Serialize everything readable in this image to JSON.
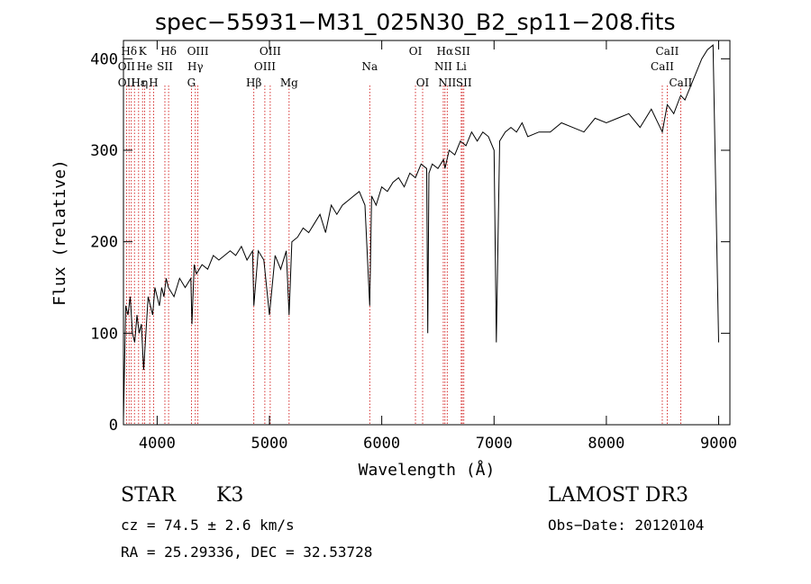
{
  "chart_data": {
    "type": "line",
    "title": "spec−55931−M31_025N30_B2_sp11−208.fits",
    "xlabel": "Wavelength (Å)",
    "ylabel": "Flux (relative)",
    "xlim": [
      3700,
      9100
    ],
    "ylim": [
      0,
      420
    ],
    "x_ticks": [
      4000,
      5000,
      6000,
      7000,
      8000,
      9000
    ],
    "y_ticks": [
      0,
      100,
      200,
      300,
      400
    ],
    "series": [
      {
        "name": "spectrum",
        "x": [
          3700,
          3720,
          3740,
          3760,
          3780,
          3800,
          3820,
          3840,
          3860,
          3880,
          3900,
          3920,
          3940,
          3960,
          3980,
          4000,
          4020,
          4040,
          4060,
          4080,
          4100,
          4150,
          4200,
          4250,
          4300,
          4310,
          4330,
          4350,
          4400,
          4450,
          4500,
          4550,
          4600,
          4650,
          4700,
          4750,
          4800,
          4850,
          4861,
          4900,
          4950,
          5000,
          5050,
          5100,
          5150,
          5175,
          5200,
          5250,
          5300,
          5350,
          5400,
          5450,
          5500,
          5550,
          5600,
          5650,
          5700,
          5750,
          5800,
          5850,
          5893,
          5910,
          5950,
          6000,
          6050,
          6100,
          6150,
          6200,
          6250,
          6300,
          6350,
          6400,
          6410,
          6420,
          6450,
          6500,
          6550,
          6563,
          6600,
          6650,
          6700,
          6750,
          6800,
          6850,
          6900,
          6950,
          7000,
          7020,
          7050,
          7100,
          7150,
          7200,
          7250,
          7300,
          7400,
          7500,
          7600,
          7700,
          7800,
          7900,
          8000,
          8100,
          8200,
          8300,
          8400,
          8498,
          8542,
          8600,
          8662,
          8700,
          8750,
          8800,
          8850,
          8900,
          8950,
          9000
        ],
        "values": [
          5,
          130,
          120,
          140,
          100,
          90,
          120,
          100,
          110,
          60,
          100,
          140,
          130,
          120,
          150,
          140,
          130,
          150,
          140,
          160,
          150,
          140,
          160,
          150,
          160,
          110,
          175,
          165,
          175,
          170,
          185,
          180,
          185,
          190,
          185,
          195,
          180,
          190,
          130,
          190,
          180,
          120,
          185,
          170,
          190,
          120,
          200,
          205,
          215,
          210,
          220,
          230,
          210,
          240,
          230,
          240,
          245,
          250,
          255,
          240,
          130,
          250,
          240,
          260,
          255,
          265,
          270,
          260,
          275,
          270,
          285,
          280,
          100,
          275,
          285,
          280,
          290,
          280,
          300,
          295,
          310,
          305,
          320,
          310,
          320,
          315,
          300,
          90,
          310,
          320,
          325,
          320,
          330,
          315,
          320,
          320,
          330,
          325,
          320,
          335,
          330,
          335,
          340,
          325,
          345,
          320,
          350,
          340,
          360,
          355,
          370,
          385,
          400,
          410,
          415,
          90
        ]
      }
    ],
    "lines": [
      {
        "name": "Hδ",
        "wavelength": 3750,
        "row": 0
      },
      {
        "name": "K",
        "wavelength": 3870,
        "row": 0
      },
      {
        "name": "Hδ",
        "wavelength": 4102,
        "row": 0
      },
      {
        "name": "OIII",
        "wavelength": 4363,
        "row": 0
      },
      {
        "name": "OIII",
        "wavelength": 5007,
        "row": 0
      },
      {
        "name": "OI",
        "wavelength": 6300,
        "row": 0
      },
      {
        "name": "Hα",
        "wavelength": 6563,
        "row": 0
      },
      {
        "name": "SII",
        "wavelength": 6717,
        "row": 0
      },
      {
        "name": "CaII",
        "wavelength": 8542,
        "row": 0
      },
      {
        "name": "OII",
        "wavelength": 3727,
        "row": 1
      },
      {
        "name": "He",
        "wavelength": 3889,
        "row": 1
      },
      {
        "name": "SII",
        "wavelength": 4069,
        "row": 1
      },
      {
        "name": "Hγ",
        "wavelength": 4340,
        "row": 1
      },
      {
        "name": "OIII",
        "wavelength": 4959,
        "row": 1
      },
      {
        "name": "Na",
        "wavelength": 5893,
        "row": 1
      },
      {
        "name": "NII",
        "wavelength": 6548,
        "row": 1
      },
      {
        "name": "Li",
        "wavelength": 6708,
        "row": 1
      },
      {
        "name": "CaII",
        "wavelength": 8498,
        "row": 1
      },
      {
        "name": "OII",
        "wavelength": 3727,
        "row": 2
      },
      {
        "name": "Hε",
        "wavelength": 3835,
        "row": 2
      },
      {
        "name": "η",
        "wavelength": 3889,
        "row": 2
      },
      {
        "name": "H",
        "wavelength": 3968,
        "row": 2
      },
      {
        "name": "G",
        "wavelength": 4305,
        "row": 2
      },
      {
        "name": "Hβ",
        "wavelength": 4861,
        "row": 2
      },
      {
        "name": "Mg",
        "wavelength": 5175,
        "row": 2
      },
      {
        "name": "OI",
        "wavelength": 6364,
        "row": 2
      },
      {
        "name": "NII",
        "wavelength": 6583,
        "row": 2
      },
      {
        "name": "SII",
        "wavelength": 6731,
        "row": 2
      },
      {
        "name": "CaII",
        "wavelength": 8662,
        "row": 2
      }
    ],
    "marker_wavelengths": [
      3727,
      3750,
      3770,
      3798,
      3835,
      3870,
      3889,
      3934,
      3968,
      4069,
      4102,
      4305,
      4340,
      4363,
      4861,
      4959,
      5007,
      5175,
      5893,
      6300,
      6364,
      6548,
      6563,
      6583,
      6708,
      6717,
      6731,
      8498,
      8542,
      8662
    ]
  },
  "info": {
    "object_class": "STAR",
    "subclass": "K3",
    "cz": "cz = 74.5 ± 2.6 km/s",
    "coords": "RA =  25.29336, DEC =  32.53728",
    "survey": "LAMOST DR3",
    "obs_date": "Obs−Date: 20120104"
  },
  "colors": {
    "axis": "#000000",
    "line": "#000000",
    "marker": "#cc0000"
  }
}
